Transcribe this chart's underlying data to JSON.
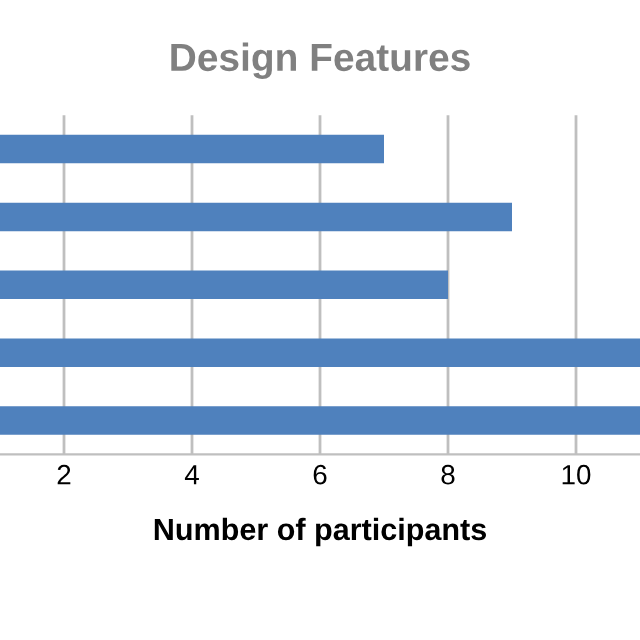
{
  "chart_data": {
    "type": "bar",
    "orientation": "horizontal",
    "title": "Design Features",
    "xlabel": "Number of participants",
    "categories": [
      null,
      null,
      null,
      null,
      null
    ],
    "values": [
      7,
      9,
      8,
      11,
      11
    ],
    "color": "#4f81bd",
    "xlim": [
      1,
      11
    ],
    "xticks": [
      2,
      4,
      6,
      8,
      10
    ],
    "grid": "x",
    "tick_labels": "x"
  }
}
